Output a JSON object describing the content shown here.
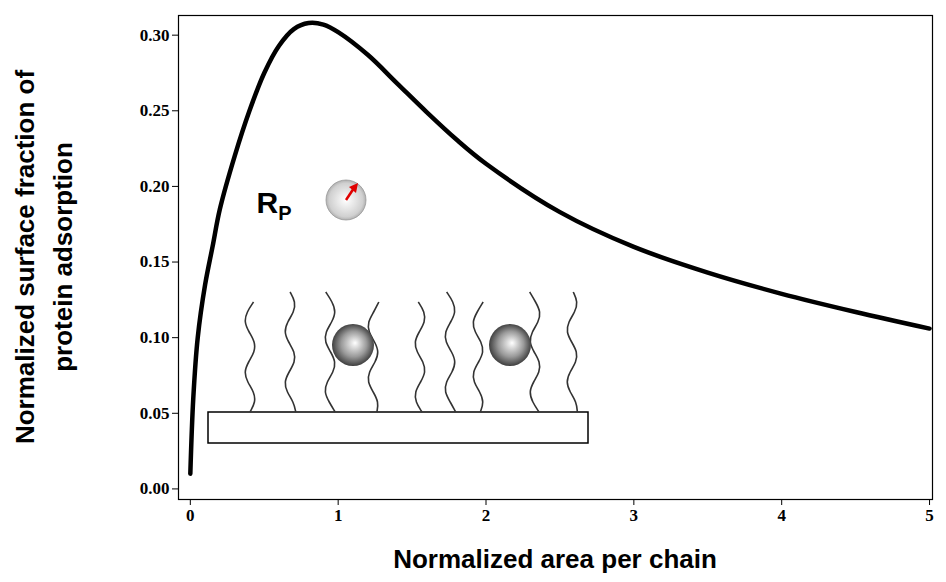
{
  "chart_data": {
    "type": "line",
    "xlabel": "Normalized area per chain",
    "ylabel": "Normalized surface fraction of protein adsorption",
    "annotation": {
      "text": "R",
      "subscript": "P"
    },
    "color": "#000000",
    "x": [
      0,
      0.02,
      0.05,
      0.1,
      0.15,
      0.2,
      0.3,
      0.4,
      0.5,
      0.6,
      0.7,
      0.8,
      0.9,
      1.0,
      1.2,
      1.4,
      1.6,
      1.8,
      2.0,
      2.5,
      3.0,
      3.5,
      4.0,
      4.5,
      5.0
    ],
    "values": [
      0.01,
      0.06,
      0.1,
      0.135,
      0.16,
      0.185,
      0.22,
      0.25,
      0.275,
      0.293,
      0.304,
      0.308,
      0.307,
      0.302,
      0.287,
      0.268,
      0.249,
      0.231,
      0.215,
      0.183,
      0.16,
      0.143,
      0.129,
      0.117,
      0.106
    ],
    "xlim": [
      -0.08,
      5.02
    ],
    "ylim": [
      -0.007,
      0.313
    ],
    "xticks": [
      0,
      1,
      2,
      3,
      4,
      5
    ],
    "yticks": [
      {
        "value": 0,
        "label": "0.00"
      },
      {
        "value": 0.05,
        "label": "0.05"
      },
      {
        "value": 0.1,
        "label": "0.10"
      },
      {
        "value": 0.15,
        "label": "0.15"
      },
      {
        "value": 0.2,
        "label": "0.20"
      },
      {
        "value": 0.25,
        "label": "0.25"
      },
      {
        "value": 0.3,
        "label": "0.30"
      }
    ]
  }
}
